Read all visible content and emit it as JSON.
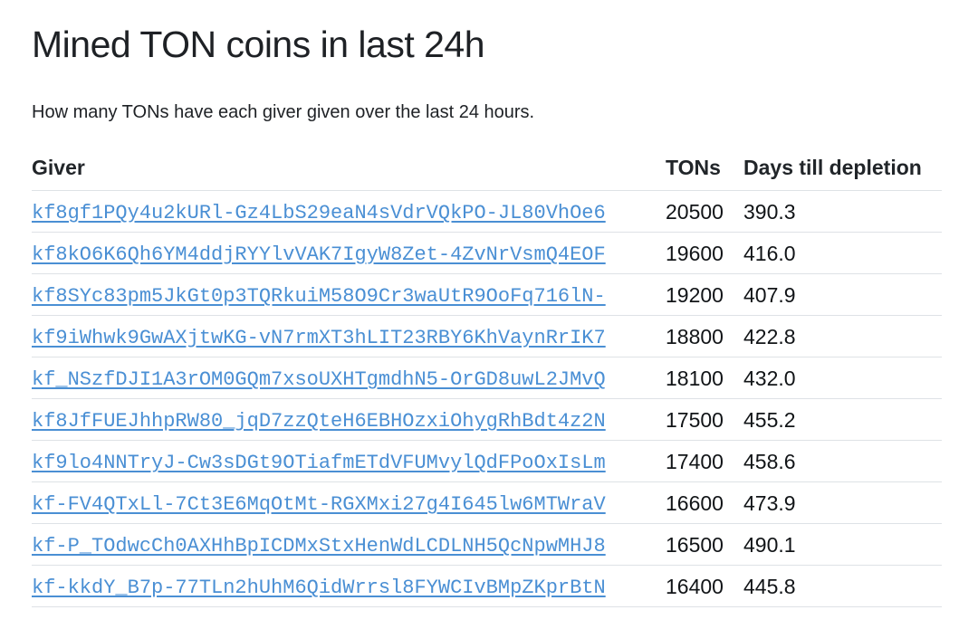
{
  "page": {
    "title": "Mined TON coins in last 24h",
    "subtitle": "How many TONs have each giver given over the last 24 hours."
  },
  "table": {
    "headers": {
      "giver": "Giver",
      "tons": "TONs",
      "days": "Days till depletion"
    },
    "rows": [
      {
        "giver": "kf8gf1PQy4u2kURl-Gz4LbS29eaN4sVdrVQkPO-JL80VhOe6",
        "tons": "20500",
        "days": "390.3"
      },
      {
        "giver": "kf8kO6K6Qh6YM4ddjRYYlvVAK7IgyW8Zet-4ZvNrVsmQ4EOF",
        "tons": "19600",
        "days": "416.0"
      },
      {
        "giver": "kf8SYc83pm5JkGt0p3TQRkuiM58O9Cr3waUtR9OoFq716lN-",
        "tons": "19200",
        "days": "407.9"
      },
      {
        "giver": "kf9iWhwk9GwAXjtwKG-vN7rmXT3hLIT23RBY6KhVaynRrIK7",
        "tons": "18800",
        "days": "422.8"
      },
      {
        "giver": "kf_NSzfDJI1A3rOM0GQm7xsoUXHTgmdhN5-OrGD8uwL2JMvQ",
        "tons": "18100",
        "days": "432.0"
      },
      {
        "giver": "kf8JfFUEJhhpRW80_jqD7zzQteH6EBHOzxiOhygRhBdt4z2N",
        "tons": "17500",
        "days": "455.2"
      },
      {
        "giver": "kf9lo4NNTryJ-Cw3sDGt9OTiafmETdVFUMvylQdFPoOxIsLm",
        "tons": "17400",
        "days": "458.6"
      },
      {
        "giver": "kf-FV4QTxLl-7Ct3E6MqOtMt-RGXMxi27g4I645lw6MTWraV",
        "tons": "16600",
        "days": "473.9"
      },
      {
        "giver": "kf-P_TOdwcCh0AXHhBpICDMxStxHenWdLCDLNH5QcNpwMHJ8",
        "tons": "16500",
        "days": "490.1"
      },
      {
        "giver": "kf-kkdY_B7p-77TLn2hUhM6QidWrrsl8FYWCIvBMpZKprBtN",
        "tons": "16400",
        "days": "445.8"
      }
    ]
  },
  "colors": {
    "link": "#4a8fd4",
    "text": "#212529",
    "border": "#dee2e6"
  }
}
